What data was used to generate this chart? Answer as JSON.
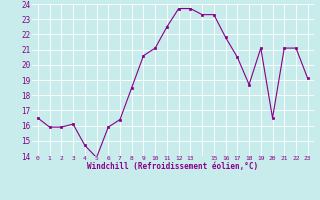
{
  "x": [
    0,
    1,
    2,
    3,
    4,
    5,
    6,
    7,
    8,
    9,
    10,
    11,
    12,
    13,
    14,
    15,
    16,
    17,
    18,
    19,
    20,
    21,
    22,
    23
  ],
  "y": [
    16.5,
    15.9,
    15.9,
    16.1,
    14.7,
    13.9,
    15.9,
    16.4,
    18.5,
    20.6,
    21.1,
    22.5,
    23.7,
    23.7,
    23.3,
    23.3,
    21.8,
    20.5,
    18.7,
    21.1,
    16.5,
    21.1,
    21.1,
    19.1
  ],
  "xlabel": "Windchill (Refroidissement éolien,°C)",
  "ylim": [
    14,
    24
  ],
  "xlim": [
    -0.5,
    23.5
  ],
  "yticks": [
    14,
    15,
    16,
    17,
    18,
    19,
    20,
    21,
    22,
    23,
    24
  ],
  "xtick_labels": [
    "0",
    "1",
    "2",
    "3",
    "4",
    "5",
    "6",
    "7",
    "8",
    "9",
    "10",
    "11",
    "12",
    "13",
    "",
    "15",
    "16",
    "17",
    "18",
    "19",
    "20",
    "21",
    "22",
    "23"
  ],
  "line_color": "#880088",
  "marker_color": "#880088",
  "bg_color": "#c8ecec",
  "grid_color": "#ffffff",
  "tick_color": "#880088",
  "xlabel_color": "#880088"
}
